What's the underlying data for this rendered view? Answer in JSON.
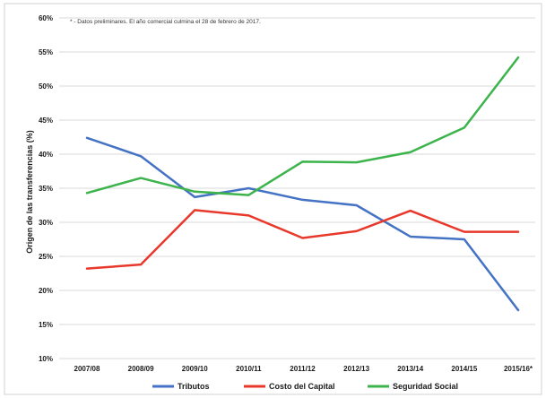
{
  "chart_data": {
    "type": "line",
    "note": "* - Datos preliminares. El año comercial culmina el 28 de febrero de 2017.",
    "ylabel": "Origen de las transferencias (%)",
    "xlabel": "",
    "categories": [
      "2007/08",
      "2008/09",
      "2009/10",
      "2010/11",
      "2011/12",
      "2012/13",
      "2013/14",
      "2014/15",
      "2015/16*"
    ],
    "ylim": [
      10,
      60
    ],
    "yticks": [
      "10%",
      "15%",
      "20%",
      "25%",
      "30%",
      "35%",
      "40%",
      "45%",
      "50%",
      "55%",
      "60%"
    ],
    "series": [
      {
        "name": "Tributos",
        "color": "#4472c4",
        "values": [
          42.4,
          39.7,
          33.7,
          35.0,
          33.3,
          32.5,
          27.9,
          27.5,
          17.1
        ]
      },
      {
        "name": "Costo del Capital",
        "color": "#e8382b",
        "values": [
          23.2,
          23.8,
          31.8,
          31.0,
          27.7,
          28.7,
          31.7,
          28.6,
          28.6
        ]
      },
      {
        "name": "Seguridad Social",
        "color": "#3cb44b",
        "values": [
          34.3,
          36.5,
          34.5,
          34.0,
          38.9,
          38.8,
          40.3,
          43.9,
          54.2
        ]
      }
    ],
    "grid": true,
    "legend": "bottom"
  }
}
